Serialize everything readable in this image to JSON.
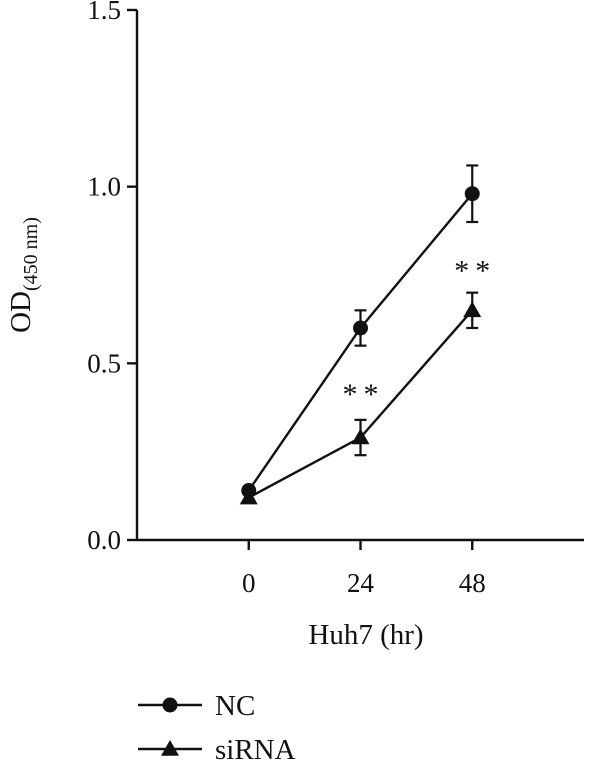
{
  "chart_data": {
    "type": "line",
    "xlabel": "Huh7 (hr)",
    "ylabel_main": "OD",
    "ylabel_sub": "(450 nm)",
    "x": [
      0,
      24,
      48
    ],
    "x_tick_labels": [
      "0",
      "24",
      "48"
    ],
    "xlim": [
      -24,
      72
    ],
    "ylim": [
      0,
      1.5
    ],
    "y_ticks": [
      0,
      0.5,
      1.0,
      1.5
    ],
    "y_tick_labels": [
      "0.0",
      "0.5",
      "1.0",
      "1.5"
    ],
    "grid": false,
    "legend_position": "bottom-left",
    "series": [
      {
        "name": "NC",
        "marker": "circle",
        "values": [
          0.14,
          0.6,
          0.98
        ],
        "errors": [
          0.01,
          0.05,
          0.08
        ]
      },
      {
        "name": "siRNA",
        "marker": "triangle",
        "values": [
          0.12,
          0.29,
          0.65
        ],
        "errors": [
          0.01,
          0.05,
          0.05
        ]
      }
    ],
    "annotations": [
      {
        "text": "**",
        "x": 24,
        "y": 0.43
      },
      {
        "text": "**",
        "x": 48,
        "y": 0.78
      }
    ]
  }
}
